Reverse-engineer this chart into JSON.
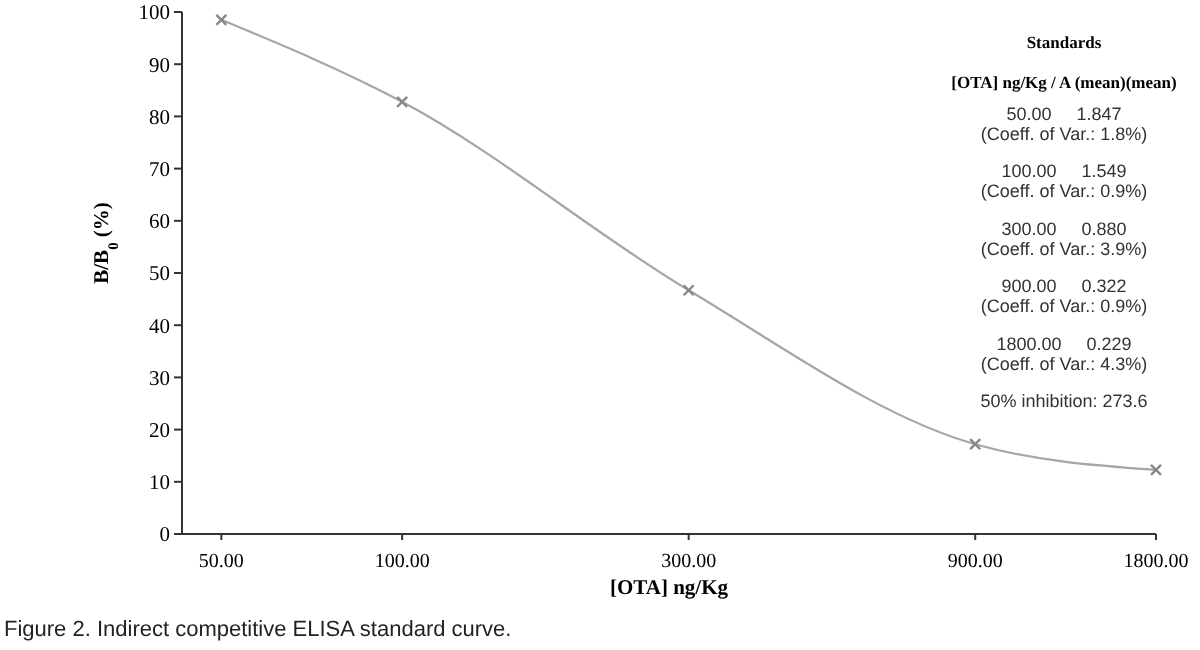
{
  "chart_data": {
    "type": "line",
    "xlabel": "[OTA] ng/Kg",
    "ylabel": "B/B$_{0}$ (%)",
    "log": "x",
    "x": [
      50,
      100,
      300,
      900,
      1800
    ],
    "series": [
      {
        "color": "#a6a6a6",
        "values": [
          98.5,
          82.8,
          46.7,
          17.2,
          12.3
        ]
      }
    ],
    "xlim": [
      43,
      1800
    ],
    "xticks": [
      {
        "value": 50,
        "label": "50.00"
      },
      {
        "value": 100,
        "label": "100.00"
      },
      {
        "value": 300,
        "label": "300.00"
      },
      {
        "value": 900,
        "label": "900.00"
      },
      {
        "value": 1800,
        "label": "1800.00"
      }
    ],
    "ylim": [
      0,
      100
    ],
    "yticks": [
      0,
      10,
      20,
      30,
      40,
      50,
      60,
      70,
      80,
      90,
      100
    ],
    "marker": "cross",
    "line_style": "solid",
    "grid": false,
    "annotations": [
      "Standards",
      "[OTA] ng/Kg / A (mean)(mean)",
      "50.00     1.847",
      "(Coeff. of Var.: 1.8%)",
      "100.00     1.549",
      "(Coeff. of Var.: 0.9%)",
      "300.00     0.880",
      "(Coeff. of Var.: 3.9%)",
      "900.00     0.322",
      "(Coeff. of Var.: 0.9%)",
      "1800.00     0.229",
      "(Coeff. of Var.: 4.3%)",
      "50% inhibition: 273.6",
      "Figure 2. Indirect competitive ELISA standard curve."
    ]
  }
}
